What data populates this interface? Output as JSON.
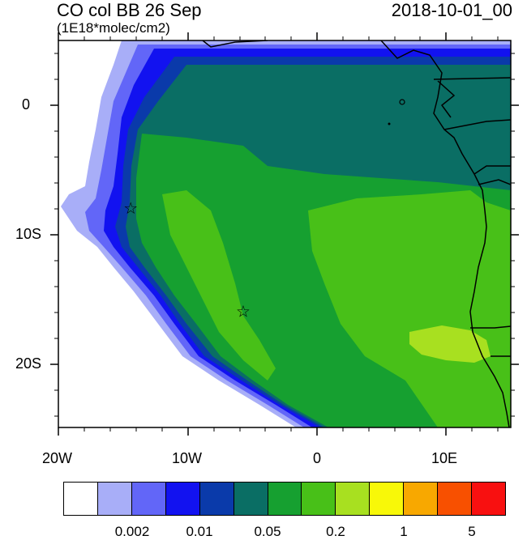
{
  "header": {
    "title": "CO col BB 26 Sep",
    "units": "(1E18*molec/cm2)",
    "date": "2018-10-01_00"
  },
  "axes": {
    "x_labels": [
      "20W",
      "10W",
      "0",
      "10E"
    ],
    "y_labels": [
      "0",
      "10S",
      "20S"
    ],
    "lon_range": [
      -20,
      15
    ],
    "lat_range": [
      -25,
      5
    ]
  },
  "markers": [
    {
      "name": "site-star-1",
      "lon": -14.4,
      "lat": -8.0,
      "symbol": "☆"
    },
    {
      "name": "site-star-2",
      "lon": -5.7,
      "lat": -16.0,
      "symbol": "☆"
    }
  ],
  "colorbar": {
    "colors": [
      "#ffffff",
      "#a8aef8",
      "#6266f8",
      "#1212f0",
      "#0a3aaa",
      "#0a6e64",
      "#16a030",
      "#48c018",
      "#a8e020",
      "#f8f808",
      "#f8a800",
      "#f85000",
      "#f81010"
    ],
    "labels": [
      "0.002",
      "0.01",
      "0.05",
      "0.2",
      "1",
      "5"
    ]
  },
  "legend_colors": {
    "ocean_background": "#ffffff",
    "coast": "#000000"
  }
}
